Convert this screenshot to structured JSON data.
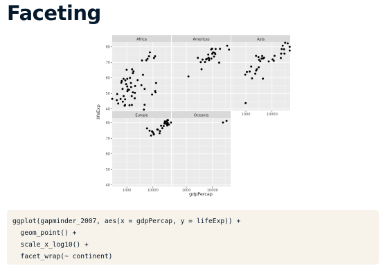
{
  "slide": {
    "title": "Faceting"
  },
  "code": {
    "lines": [
      "ggplot(gapminder_2007, aes(x = gdpPercap, y = lifeExp)) +",
      "  geom_point() +",
      "  scale_x_log10() +",
      "  facet_wrap(~ continent)"
    ]
  },
  "colors": {
    "title": "#05192d",
    "code_background": "#f7f3eb",
    "panel_background": "#ebebeb",
    "strip_background": "#d9d9d9",
    "grid": "#ffffff",
    "point": "#000000"
  },
  "chart_data": {
    "type": "scatter",
    "xlabel": "gdpPercap",
    "ylabel": "lifeExp",
    "x_scale": "log10",
    "xlim": [
      277,
      49357
    ],
    "ylim": [
      39,
      83
    ],
    "x_ticks": [
      1000,
      10000
    ],
    "x_tick_labels": [
      "1000",
      "10000"
    ],
    "y_ticks": [
      40,
      50,
      60,
      70,
      80
    ],
    "y_tick_labels": [
      "40",
      "50",
      "60",
      "70",
      "80"
    ],
    "grid": true,
    "legend": "none",
    "panels": [
      {
        "label": "Africa",
        "points": [
          [
            6223,
            72.3
          ],
          [
            4797,
            42.7
          ],
          [
            1441,
            56.7
          ],
          [
            12570,
            50.7
          ],
          [
            1217,
            52.3
          ],
          [
            430,
            49.6
          ],
          [
            2042,
            50.4
          ],
          [
            706,
            44.7
          ],
          [
            1704,
            50.7
          ],
          [
            986,
            65.2
          ],
          [
            278,
            46.5
          ],
          [
            3633,
            55.3
          ],
          [
            1545,
            48.3
          ],
          [
            2082,
            54.8
          ],
          [
            5581,
            71.3
          ],
          [
            12154,
            51.6
          ],
          [
            641,
            58.0
          ],
          [
            690,
            52.9
          ],
          [
            13206,
            56.7
          ],
          [
            753,
            59.4
          ],
          [
            1328,
            60.0
          ],
          [
            943,
            56.0
          ],
          [
            580,
            46.4
          ],
          [
            1463,
            54.1
          ],
          [
            1569,
            42.6
          ],
          [
            415,
            45.7
          ],
          [
            12057,
            73.9
          ],
          [
            1045,
            59.4
          ],
          [
            759,
            48.3
          ],
          [
            1043,
            54.5
          ],
          [
            1803,
            64.2
          ],
          [
            10957,
            72.8
          ],
          [
            3820,
            71.2
          ],
          [
            824,
            42.1
          ],
          [
            4811,
            52.9
          ],
          [
            620,
            56.9
          ],
          [
            2014,
            46.9
          ],
          [
            7670,
            76.4
          ],
          [
            863,
            46.2
          ],
          [
            1598,
            65.5
          ],
          [
            1712,
            63.1
          ],
          [
            862,
            42.6
          ],
          [
            9270,
            49.3
          ],
          [
            2602,
            58.6
          ],
          [
            4513,
            39.6
          ],
          [
            1107,
            52.5
          ],
          [
            882,
            58.4
          ],
          [
            7093,
            73.9
          ],
          [
            1056,
            51.5
          ],
          [
            1271,
            42.4
          ],
          [
            470,
            43.5
          ],
          [
            4160,
            62.0
          ]
        ]
      },
      {
        "label": "Americas",
        "points": [
          [
            12779,
            75.3
          ],
          [
            3822,
            65.6
          ],
          [
            9066,
            72.4
          ],
          [
            36319,
            80.7
          ],
          [
            13172,
            78.6
          ],
          [
            7007,
            72.9
          ],
          [
            9645,
            78.8
          ],
          [
            8948,
            78.3
          ],
          [
            6025,
            72.2
          ],
          [
            6873,
            75.0
          ],
          [
            5728,
            71.9
          ],
          [
            5186,
            70.3
          ],
          [
            1202,
            60.9
          ],
          [
            3548,
            70.2
          ],
          [
            7321,
            72.6
          ],
          [
            11978,
            76.2
          ],
          [
            2749,
            72.9
          ],
          [
            9809,
            75.5
          ],
          [
            4173,
            71.8
          ],
          [
            7409,
            71.4
          ],
          [
            19329,
            78.7
          ],
          [
            18009,
            69.8
          ],
          [
            42952,
            78.2
          ],
          [
            10611,
            76.4
          ],
          [
            11416,
            73.7
          ]
        ]
      },
      {
        "label": "Asia",
        "points": [
          [
            975,
            43.8
          ],
          [
            29796,
            75.6
          ],
          [
            1391,
            64.1
          ],
          [
            1714,
            59.7
          ],
          [
            4959,
            73.0
          ],
          [
            39725,
            82.2
          ],
          [
            2452,
            64.7
          ],
          [
            3541,
            70.7
          ],
          [
            11606,
            71.0
          ],
          [
            4471,
            59.5
          ],
          [
            25523,
            80.7
          ],
          [
            31656,
            82.6
          ],
          [
            4519,
            72.5
          ],
          [
            1593,
            67.3
          ],
          [
            23348,
            78.6
          ],
          [
            47307,
            77.6
          ],
          [
            10461,
            71.9
          ],
          [
            12452,
            74.2
          ],
          [
            3096,
            66.8
          ],
          [
            944,
            62.1
          ],
          [
            1091,
            63.8
          ],
          [
            22316,
            75.6
          ],
          [
            2605,
            65.5
          ],
          [
            3190,
            71.7
          ],
          [
            21655,
            72.8
          ],
          [
            47143,
            80.0
          ],
          [
            3970,
            72.4
          ],
          [
            4185,
            74.1
          ],
          [
            28718,
            78.4
          ],
          [
            7458,
            70.6
          ],
          [
            2442,
            74.2
          ],
          [
            3025,
            73.4
          ],
          [
            2281,
            62.7
          ]
        ]
      },
      {
        "label": "Europe",
        "points": [
          [
            5937,
            76.4
          ],
          [
            36126,
            79.8
          ],
          [
            33693,
            79.4
          ],
          [
            7446,
            74.9
          ],
          [
            10681,
            73.0
          ],
          [
            14619,
            75.7
          ],
          [
            22833,
            76.5
          ],
          [
            35278,
            78.3
          ],
          [
            33207,
            79.3
          ],
          [
            30470,
            80.7
          ],
          [
            32170,
            79.4
          ],
          [
            27538,
            79.5
          ],
          [
            18008,
            73.3
          ],
          [
            36181,
            81.8
          ],
          [
            40676,
            78.9
          ],
          [
            28570,
            80.5
          ],
          [
            9254,
            74.5
          ],
          [
            36798,
            79.8
          ],
          [
            49357,
            80.2
          ],
          [
            15390,
            75.6
          ],
          [
            20510,
            78.1
          ],
          [
            10808,
            72.5
          ],
          [
            9787,
            74.0
          ],
          [
            18678,
            74.7
          ],
          [
            25768,
            77.9
          ],
          [
            28821,
            80.9
          ],
          [
            33860,
            80.9
          ],
          [
            37506,
            81.7
          ],
          [
            8458,
            71.8
          ],
          [
            33203,
            79.4
          ]
        ]
      },
      {
        "label": "Oceania",
        "points": [
          [
            34435,
            81.2
          ],
          [
            25185,
            80.2
          ]
        ]
      }
    ]
  }
}
